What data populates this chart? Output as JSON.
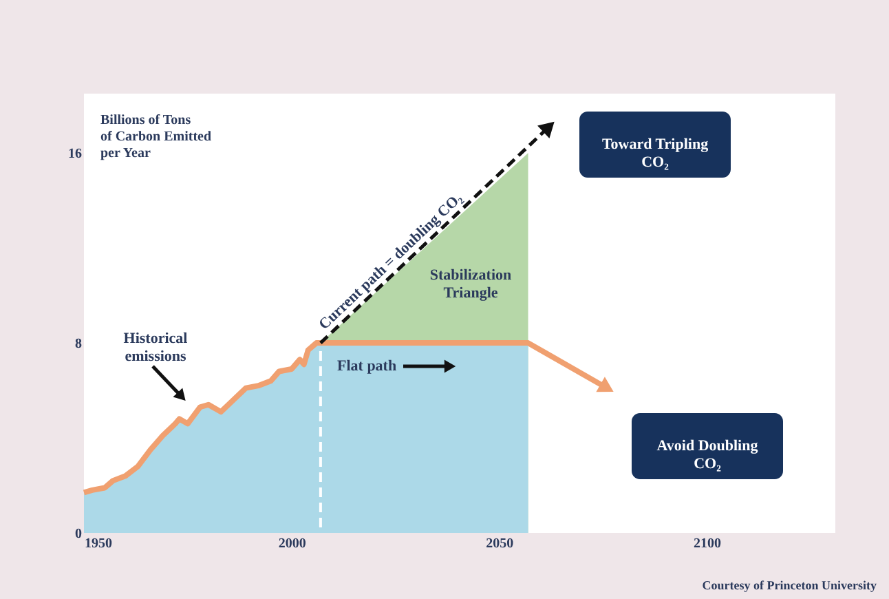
{
  "chart_data": {
    "type": "line",
    "ylabel": "Billions of Tons of Carbon Emitted per Year",
    "xlim": [
      1950,
      2131
    ],
    "ylim": [
      0,
      18.5
    ],
    "xticks": [
      1950,
      2000,
      2050,
      2100
    ],
    "yticks": [
      0,
      8,
      16
    ],
    "grid": false,
    "series": [
      {
        "type": "area",
        "color": "#b6d7a8",
        "x": [
          2007,
          2057
        ],
        "values": [
          8,
          16
        ]
      },
      {
        "type": "area",
        "color": "#acd9e8",
        "x": [
          1950,
          1952,
          1955,
          1957,
          1960,
          1963,
          1966,
          1969,
          1972,
          1973,
          1975,
          1978,
          1980,
          1983,
          1986,
          1989,
          1992,
          1995,
          1997,
          2000,
          2002,
          2003,
          2004,
          2006,
          2007,
          2057
        ],
        "values": [
          1.7,
          1.8,
          1.9,
          2.2,
          2.4,
          2.8,
          3.5,
          4.1,
          4.6,
          4.8,
          4.6,
          5.3,
          5.4,
          5.1,
          5.6,
          6.1,
          6.2,
          6.4,
          6.8,
          6.9,
          7.3,
          7.1,
          7.7,
          8.0,
          8.0,
          8.0
        ]
      },
      {
        "color": "#f0a070",
        "line_style": "solid",
        "x": [
          1950,
          1952,
          1955,
          1957,
          1960,
          1963,
          1966,
          1969,
          1972,
          1973,
          1975,
          1978,
          1980,
          1983,
          1986,
          1989,
          1992,
          1995,
          1997,
          2000,
          2002,
          2003,
          2004,
          2006,
          2007,
          2057,
          2076
        ],
        "values": [
          1.7,
          1.8,
          1.9,
          2.2,
          2.4,
          2.8,
          3.5,
          4.1,
          4.6,
          4.8,
          4.6,
          5.3,
          5.4,
          5.1,
          5.6,
          6.1,
          6.2,
          6.4,
          6.8,
          6.9,
          7.3,
          7.1,
          7.7,
          8.0,
          8.0,
          8.0,
          6.1
        ]
      },
      {
        "color": "#111111",
        "line_style": "dashed",
        "x": [
          2007,
          2062
        ],
        "values": [
          8,
          17.1
        ]
      }
    ],
    "ref_lines": [
      {
        "axis": "x",
        "value": 2007,
        "color": "#ffffff",
        "line_style": "dashed"
      }
    ],
    "annotations": [
      "Historical emissions",
      "Flat path",
      "Current path = doubling CO₂",
      "Stabilization Triangle",
      "Toward Tripling CO₂",
      "Avoid Doubling CO₂",
      "Courtesy of Princeton University"
    ]
  }
}
